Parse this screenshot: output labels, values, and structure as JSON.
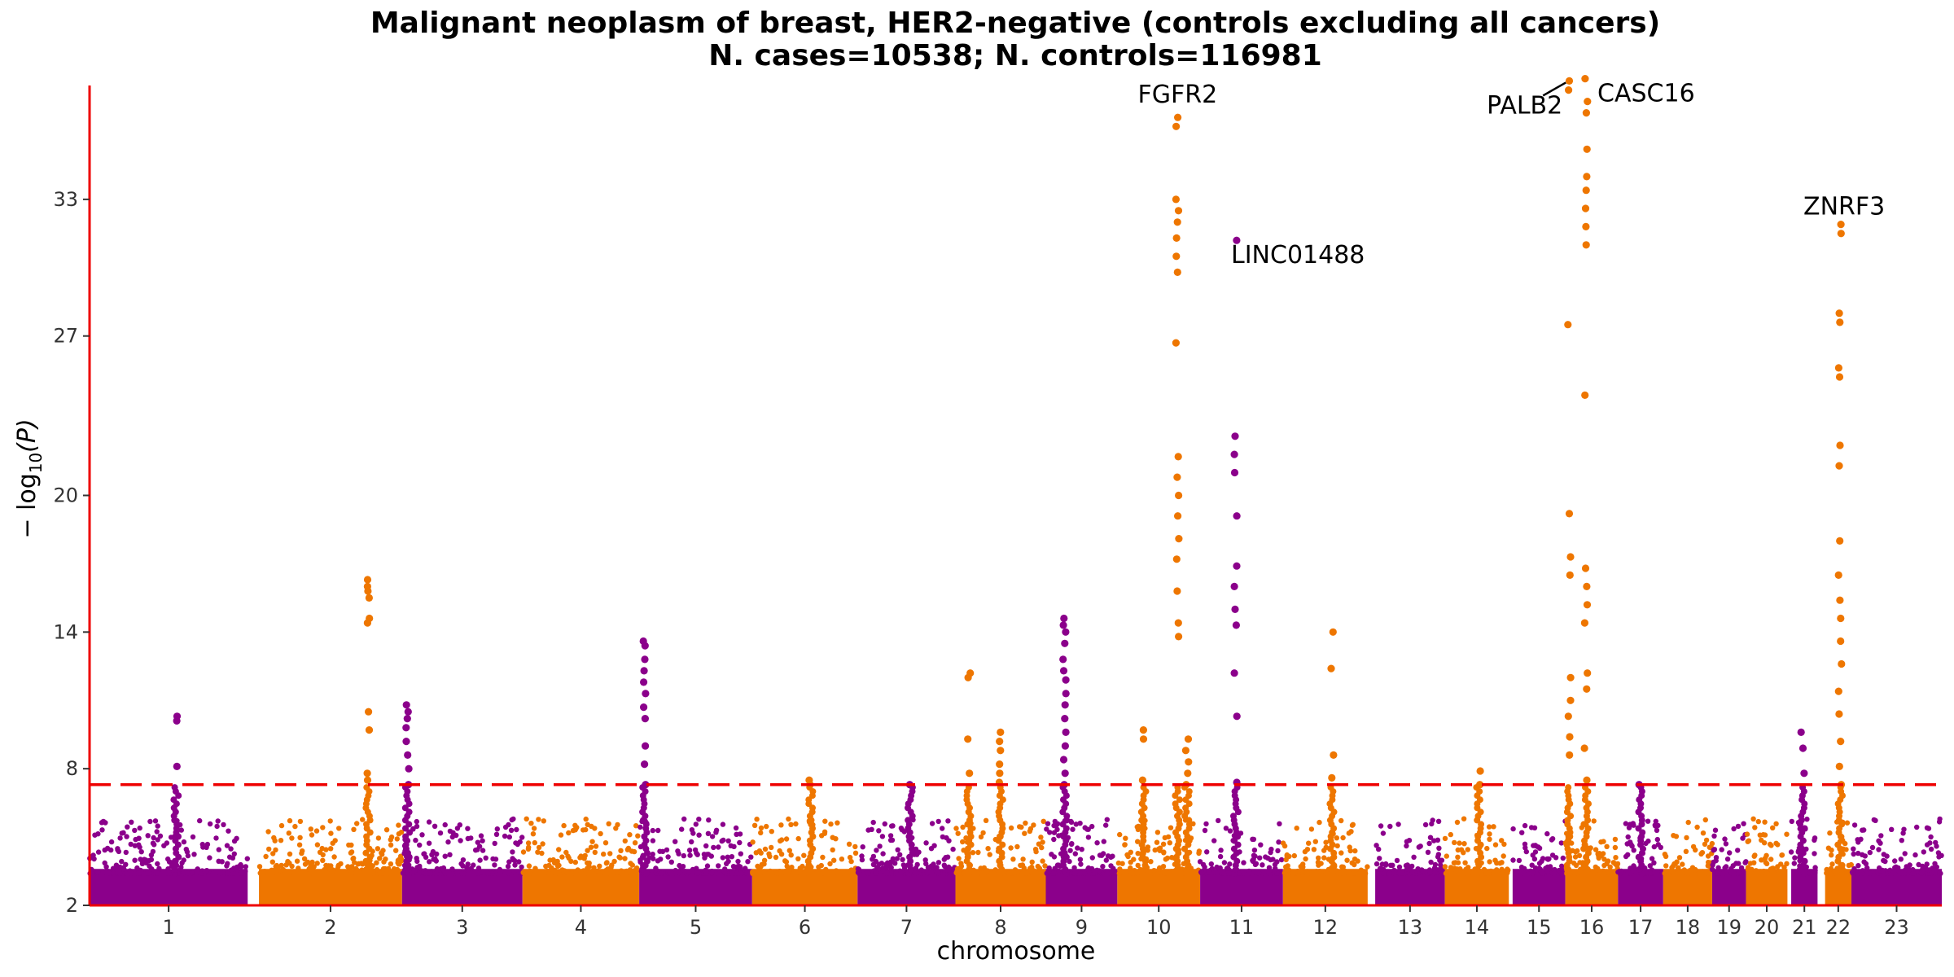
{
  "chart_data": {
    "type": "scatter",
    "title": "Malignant neoplasm of breast, HER2-negative (controls excluding all cancers)",
    "subtitle": "N. cases=10538; N. controls=116981",
    "xlabel": "chromosome",
    "ylabel_main": "− log",
    "ylabel_sub": "10",
    "ylabel_tail": "(P)",
    "ylim": [
      2,
      38
    ],
    "yticks": [
      "2",
      "8",
      "14",
      "20",
      "27",
      "33"
    ],
    "ytick_values": [
      2,
      8,
      14,
      20,
      27,
      33
    ],
    "significance_threshold": 7.3,
    "grid": false,
    "colors": {
      "odd": "#8B008B",
      "even": "#EE7600",
      "threshold": "#EE0000",
      "axis": "#EE0000"
    },
    "chromosomes": [
      {
        "label": "1",
        "start": 0.0,
        "end": 4.2
      },
      {
        "label": "2",
        "start": 4.5,
        "end": 8.3
      },
      {
        "label": "3",
        "start": 8.3,
        "end": 11.5
      },
      {
        "label": "4",
        "start": 11.5,
        "end": 14.6
      },
      {
        "label": "5",
        "start": 14.6,
        "end": 17.6
      },
      {
        "label": "6",
        "start": 17.6,
        "end": 20.4
      },
      {
        "label": "7",
        "start": 20.4,
        "end": 23.0
      },
      {
        "label": "8",
        "start": 23.0,
        "end": 25.4
      },
      {
        "label": "9",
        "start": 25.4,
        "end": 27.3
      },
      {
        "label": "10",
        "start": 27.3,
        "end": 29.5
      },
      {
        "label": "11",
        "start": 29.5,
        "end": 31.7
      },
      {
        "label": "12",
        "start": 31.7,
        "end": 33.95
      },
      {
        "label": "13",
        "start": 34.15,
        "end": 36.0
      },
      {
        "label": "14",
        "start": 36.0,
        "end": 37.7
      },
      {
        "label": "15",
        "start": 37.8,
        "end": 39.2
      },
      {
        "label": "16",
        "start": 39.2,
        "end": 40.6
      },
      {
        "label": "17",
        "start": 40.6,
        "end": 41.8
      },
      {
        "label": "18",
        "start": 41.8,
        "end": 43.1
      },
      {
        "label": "19",
        "start": 43.1,
        "end": 44.0
      },
      {
        "label": "20",
        "start": 44.0,
        "end": 45.1
      },
      {
        "label": "21",
        "start": 45.2,
        "end": 45.9
      },
      {
        "label": "22",
        "start": 46.1,
        "end": 46.8
      },
      {
        "label": "23",
        "start": 46.8,
        "end": 49.2
      }
    ],
    "peaks": [
      {
        "chrom": "1",
        "x": 2.3,
        "values": [
          8.1,
          10.1,
          10.3
        ]
      },
      {
        "chrom": "2",
        "x": 7.4,
        "values": [
          7.5,
          7.8,
          9.7,
          10.5,
          14.4,
          14.6,
          15.5,
          15.8,
          16.0,
          16.3
        ]
      },
      {
        "chrom": "3",
        "x": 8.45,
        "values": [
          7.3,
          8.0,
          8.6,
          9.2,
          9.8,
          10.2,
          10.5,
          10.8
        ]
      },
      {
        "chrom": "5",
        "x": 14.75,
        "values": [
          7.3,
          8.2,
          9.0,
          10.2,
          10.7,
          11.3,
          11.8,
          12.3,
          12.8,
          13.4,
          13.6
        ]
      },
      {
        "chrom": "6",
        "x": 19.15,
        "values": [
          7.3,
          7.5
        ]
      },
      {
        "chrom": "7",
        "x": 21.8,
        "values": [
          7.3
        ]
      },
      {
        "chrom": "8",
        "x": 23.35,
        "values": [
          7.8,
          9.3,
          12.0,
          12.2
        ]
      },
      {
        "chrom": "8",
        "x": 24.2,
        "values": [
          7.4,
          7.8,
          8.2,
          8.8,
          9.2,
          9.6
        ]
      },
      {
        "chrom": "9",
        "x": 25.9,
        "values": [
          7.3,
          7.8,
          8.4,
          9.0,
          9.6,
          10.2,
          10.8,
          11.3,
          11.9,
          12.3,
          12.8,
          13.5,
          14.0,
          14.3,
          14.6
        ]
      },
      {
        "chrom": "10",
        "x": 28.0,
        "values": [
          7.5,
          9.3,
          9.7
        ]
      },
      {
        "chrom": "10",
        "x": 28.9,
        "values": [
          13.8,
          14.4,
          15.8,
          17.2,
          18.1,
          19.1,
          20.0,
          20.8,
          21.7,
          26.7,
          29.8,
          30.5,
          31.3,
          32.0,
          32.5,
          33.0,
          36.2,
          36.6
        ]
      },
      {
        "chrom": "10",
        "x": 29.15,
        "values": [
          7.3,
          7.8,
          8.3,
          8.8,
          9.3
        ]
      },
      {
        "chrom": "11",
        "x": 30.45,
        "values": [
          7.4,
          10.3,
          12.2,
          14.3,
          15.0,
          16.0,
          16.9,
          19.1,
          21.0,
          21.8,
          22.6,
          31.2
        ]
      },
      {
        "chrom": "12",
        "x": 33.0,
        "values": [
          7.6,
          8.6,
          12.4,
          14.0
        ]
      },
      {
        "chrom": "14",
        "x": 36.9,
        "values": [
          7.3,
          7.9
        ]
      },
      {
        "chrom": "16",
        "x": 39.3,
        "values": [
          8.6,
          9.4,
          10.3,
          11.0,
          12.0,
          16.5,
          17.3,
          19.2,
          27.5,
          37.8,
          38.2
        ]
      },
      {
        "chrom": "16",
        "x": 39.75,
        "values": [
          7.5,
          8.9,
          11.5,
          12.2,
          14.4,
          15.2,
          16.0,
          16.8,
          24.4,
          31.0,
          31.8,
          32.6,
          33.4,
          34.0,
          35.2,
          36.8,
          37.3,
          38.3
        ]
      },
      {
        "chrom": "17",
        "x": 41.2,
        "values": [
          7.3
        ]
      },
      {
        "chrom": "21",
        "x": 45.5,
        "values": [
          7.8,
          8.9,
          9.6
        ]
      },
      {
        "chrom": "22",
        "x": 46.5,
        "values": [
          7.3,
          8.1,
          9.2,
          10.4,
          11.4,
          12.6,
          13.6,
          14.6,
          15.4,
          16.5,
          18.0,
          21.3,
          22.2,
          25.2,
          25.6,
          27.6,
          28.0,
          31.5,
          31.9
        ]
      }
    ],
    "annotations": [
      {
        "label": "FGFR2",
        "x": 28.9,
        "y": 36.6
      },
      {
        "label": "LINC01488",
        "x": 30.45,
        "y": 31.2
      },
      {
        "label": "PALB2",
        "x": 39.3,
        "y": 38.2
      },
      {
        "label": "CASC16",
        "x": 39.75,
        "y": 38.3
      },
      {
        "label": "ZNRF3",
        "x": 46.5,
        "y": 31.9
      }
    ]
  }
}
